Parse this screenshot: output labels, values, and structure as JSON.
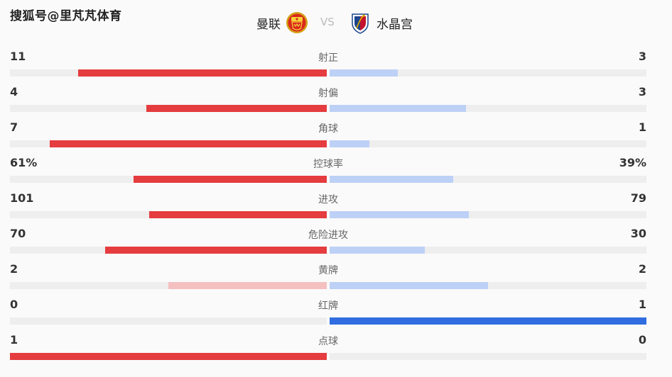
{
  "watermark": "搜狐号@里芃芃体育",
  "home_team": {
    "name": "曼联",
    "logo_icon": "manchester-united-crest-icon"
  },
  "vs_label": "VS",
  "away_team": {
    "name": "水晶宫",
    "logo_icon": "crystal-palace-crest-icon"
  },
  "colors": {
    "home_bar": "#e53c3f",
    "home_bar_light": "#f5c0c0",
    "away_bar": "#bdd0f6",
    "away_bar_dark": "#2f6de0",
    "track": "#eeeeee"
  },
  "stats": [
    {
      "label": "射正",
      "home": "11",
      "away": "3",
      "home_fill": 0.785,
      "away_fill": 0.215,
      "home_style": "normal",
      "away_style": "normal"
    },
    {
      "label": "射偏",
      "home": "4",
      "away": "3",
      "home_fill": 0.57,
      "away_fill": 0.43,
      "home_style": "normal",
      "away_style": "normal"
    },
    {
      "label": "角球",
      "home": "7",
      "away": "1",
      "home_fill": 0.875,
      "away_fill": 0.125,
      "home_style": "normal",
      "away_style": "normal"
    },
    {
      "label": "控球率",
      "home": "61%",
      "away": "39%",
      "home_fill": 0.61,
      "away_fill": 0.39,
      "home_style": "normal",
      "away_style": "normal"
    },
    {
      "label": "进攻",
      "home": "101",
      "away": "79",
      "home_fill": 0.561,
      "away_fill": 0.439,
      "home_style": "normal",
      "away_style": "normal"
    },
    {
      "label": "危险进攻",
      "home": "70",
      "away": "30",
      "home_fill": 0.7,
      "away_fill": 0.3,
      "home_style": "normal",
      "away_style": "normal"
    },
    {
      "label": "黄牌",
      "home": "2",
      "away": "2",
      "home_fill": 0.5,
      "away_fill": 0.5,
      "home_style": "light",
      "away_style": "normal"
    },
    {
      "label": "红牌",
      "home": "0",
      "away": "1",
      "home_fill": 0.0,
      "away_fill": 1.0,
      "home_style": "normal",
      "away_style": "dark"
    },
    {
      "label": "点球",
      "home": "1",
      "away": "0",
      "home_fill": 1.0,
      "away_fill": 0.0,
      "home_style": "normal",
      "away_style": "normal"
    }
  ]
}
